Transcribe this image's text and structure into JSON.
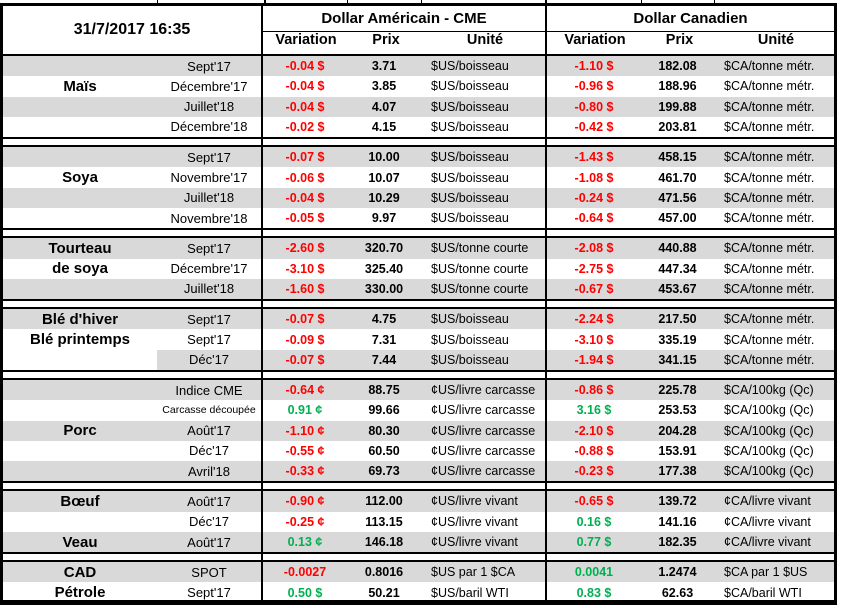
{
  "header": {
    "datetime": "31/7/2017 16:35",
    "us_section_title": "Dollar Américain - CME",
    "ca_section_title": "Dollar Canadien",
    "columns": {
      "variation": "Variation",
      "prix": "Prix",
      "unite": "Unité"
    }
  },
  "colors": {
    "negative": "#FF0000",
    "positive": "#00B050",
    "row_shade": "#D9D9D9",
    "border": "#000000"
  },
  "groups": [
    {
      "name": "mais",
      "rows": [
        {
          "commodity": "",
          "contract": "Sept'17",
          "us_var": "-0.04 $",
          "us_price": "3.71",
          "us_unit": "$US/boisseau",
          "ca_var": "-1.10 $",
          "ca_price": "182.08",
          "ca_unit": "$CA/tonne métr.",
          "shade": true
        },
        {
          "commodity": "Maïs",
          "contract": "Décembre'17",
          "us_var": "-0.04 $",
          "us_price": "3.85",
          "us_unit": "$US/boisseau",
          "ca_var": "-0.96 $",
          "ca_price": "188.96",
          "ca_unit": "$CA/tonne métr.",
          "shade": false
        },
        {
          "commodity": "",
          "contract": "Juillet'18",
          "us_var": "-0.04 $",
          "us_price": "4.07",
          "us_unit": "$US/boisseau",
          "ca_var": "-0.80 $",
          "ca_price": "199.88",
          "ca_unit": "$CA/tonne métr.",
          "shade": true
        },
        {
          "commodity": "",
          "contract": "Décembre'18",
          "us_var": "-0.02 $",
          "us_price": "4.15",
          "us_unit": "$US/boisseau",
          "ca_var": "-0.42 $",
          "ca_price": "203.81",
          "ca_unit": "$CA/tonne métr.",
          "shade": false
        }
      ]
    },
    {
      "name": "soya",
      "rows": [
        {
          "commodity": "",
          "contract": "Sept'17",
          "us_var": "-0.07 $",
          "us_price": "10.00",
          "us_unit": "$US/boisseau",
          "ca_var": "-1.43 $",
          "ca_price": "458.15",
          "ca_unit": "$CA/tonne métr.",
          "shade": true
        },
        {
          "commodity": "Soya",
          "contract": "Novembre'17",
          "us_var": "-0.06 $",
          "us_price": "10.07",
          "us_unit": "$US/boisseau",
          "ca_var": "-1.08 $",
          "ca_price": "461.70",
          "ca_unit": "$CA/tonne métr.",
          "shade": false
        },
        {
          "commodity": "",
          "contract": "Juillet'18",
          "us_var": "-0.04 $",
          "us_price": "10.29",
          "us_unit": "$US/boisseau",
          "ca_var": "-0.24 $",
          "ca_price": "471.56",
          "ca_unit": "$CA/tonne métr.",
          "shade": true
        },
        {
          "commodity": "",
          "contract": "Novembre'18",
          "us_var": "-0.05 $",
          "us_price": "9.97",
          "us_unit": "$US/boisseau",
          "ca_var": "-0.64 $",
          "ca_price": "457.00",
          "ca_unit": "$CA/tonne métr.",
          "shade": false
        }
      ]
    },
    {
      "name": "tourteau-de-soya",
      "rows": [
        {
          "commodity": "Tourteau",
          "contract": "Sept'17",
          "us_var": "-2.60 $",
          "us_price": "320.70",
          "us_unit": "$US/tonne courte",
          "ca_var": "-2.08 $",
          "ca_price": "440.88",
          "ca_unit": "$CA/tonne métr.",
          "shade": true
        },
        {
          "commodity": "de soya",
          "contract": "Décembre'17",
          "us_var": "-3.10 $",
          "us_price": "325.40",
          "us_unit": "$US/tonne courte",
          "ca_var": "-2.75 $",
          "ca_price": "447.34",
          "ca_unit": "$CA/tonne métr.",
          "shade": false
        },
        {
          "commodity": "",
          "contract": "Juillet'18",
          "us_var": "-1.60 $",
          "us_price": "330.00",
          "us_unit": "$US/tonne courte",
          "ca_var": "-0.67 $",
          "ca_price": "453.67",
          "ca_unit": "$CA/tonne métr.",
          "shade": true
        }
      ]
    },
    {
      "name": "ble",
      "rows": [
        {
          "commodity": "Blé d'hiver",
          "contract": "Sept'17",
          "us_var": "-0.07 $",
          "us_price": "4.75",
          "us_unit": "$US/boisseau",
          "ca_var": "-2.24 $",
          "ca_price": "217.50",
          "ca_unit": "$CA/tonne métr.",
          "shade": true
        },
        {
          "commodity": "Blé printemps",
          "contract": "Sept'17",
          "us_var": "-0.09 $",
          "us_price": "7.31",
          "us_unit": "$US/boisseau",
          "ca_var": "-3.10 $",
          "ca_price": "335.19",
          "ca_unit": "$CA/tonne métr.",
          "shade": false
        },
        {
          "commodity": "",
          "contract": "Déc'17",
          "us_var": "-0.07 $",
          "us_price": "7.44",
          "us_unit": "$US/boisseau",
          "ca_var": "-1.94 $",
          "ca_price": "341.15",
          "ca_unit": "$CA/tonne métr.",
          "shade": false,
          "partial_shade": true
        }
      ]
    },
    {
      "name": "porc",
      "rows": [
        {
          "commodity": "",
          "contract": "Indice CME",
          "us_var": "-0.64 ¢",
          "us_price": "88.75",
          "us_unit": "¢US/livre carcasse",
          "ca_var": "-0.86 $",
          "ca_price": "225.78",
          "ca_unit": "$CA/100kg (Qc)",
          "shade": true
        },
        {
          "commodity": "",
          "contract": "Carcasse découpée",
          "us_var": "0.91 ¢",
          "us_price": "99.66",
          "us_unit": "¢US/livre carcasse",
          "ca_var": "3.16 $",
          "ca_price": "253.53",
          "ca_unit": "$CA/100kg (Qc)",
          "shade": false,
          "small_contract": true
        },
        {
          "commodity": "Porc",
          "contract": "Août'17",
          "us_var": "-1.10 ¢",
          "us_price": "80.30",
          "us_unit": "¢US/livre carcasse",
          "ca_var": "-2.10 $",
          "ca_price": "204.28",
          "ca_unit": "$CA/100kg (Qc)",
          "shade": true
        },
        {
          "commodity": "",
          "contract": "Déc'17",
          "us_var": "-0.55 ¢",
          "us_price": "60.50",
          "us_unit": "¢US/livre carcasse",
          "ca_var": "-0.88 $",
          "ca_price": "153.91",
          "ca_unit": "$CA/100kg (Qc)",
          "shade": false
        },
        {
          "commodity": "",
          "contract": "Avril'18",
          "us_var": "-0.33 ¢",
          "us_price": "69.73",
          "us_unit": "¢US/livre carcasse",
          "ca_var": "-0.23 $",
          "ca_price": "177.38",
          "ca_unit": "$CA/100kg (Qc)",
          "shade": true
        }
      ]
    },
    {
      "name": "boeuf-veau",
      "rows": [
        {
          "commodity": "Bœuf",
          "contract": "Août'17",
          "us_var": "-0.90 ¢",
          "us_price": "112.00",
          "us_unit": "¢US/livre vivant",
          "ca_var": "-0.65 $",
          "ca_price": "139.72",
          "ca_unit": "¢CA/livre vivant",
          "shade": true
        },
        {
          "commodity": "",
          "contract": "Déc'17",
          "us_var": "-0.25 ¢",
          "us_price": "113.15",
          "us_unit": "¢US/livre vivant",
          "ca_var": "0.16 $",
          "ca_price": "141.16",
          "ca_unit": "¢CA/livre vivant",
          "shade": false
        },
        {
          "commodity": "Veau",
          "contract": "Août'17",
          "us_var": "0.13 ¢",
          "us_price": "146.18",
          "us_unit": "¢US/livre vivant",
          "ca_var": "0.77 $",
          "ca_price": "182.35",
          "ca_unit": "¢CA/livre vivant",
          "shade": true
        }
      ]
    },
    {
      "name": "cad-petrole",
      "rows": [
        {
          "commodity": "CAD",
          "contract": "SPOT",
          "us_var": "-0.0027",
          "us_price": "0.8016",
          "us_unit": "$US par 1 $CA",
          "ca_var": "0.0041",
          "ca_price": "1.2474",
          "ca_unit": "$CA par 1 $US",
          "shade": true
        },
        {
          "commodity": "Pétrole",
          "contract": "Sept'17",
          "us_var": "0.50 $",
          "us_price": "50.21",
          "us_unit": "$US/baril WTI",
          "ca_var": "0.83 $",
          "ca_price": "62.63",
          "ca_unit": "$CA/baril WTI",
          "shade": false
        }
      ]
    }
  ]
}
